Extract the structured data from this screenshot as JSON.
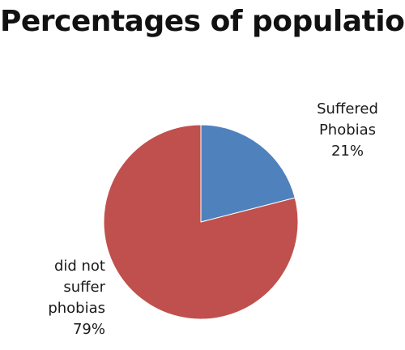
{
  "chart_data": {
    "type": "pie",
    "title": "Percentages of population",
    "slices": [
      {
        "label_lines": [
          "Suffered",
          "Phobias"
        ],
        "value": 21,
        "value_label": "21%",
        "color": "#4f81bd"
      },
      {
        "label_lines": [
          "did not",
          "suffer",
          "phobias"
        ],
        "value": 79,
        "value_label": "79%",
        "color": "#c0504d"
      }
    ],
    "start_angle": "12 o'clock, clockwise",
    "legend": "none"
  }
}
